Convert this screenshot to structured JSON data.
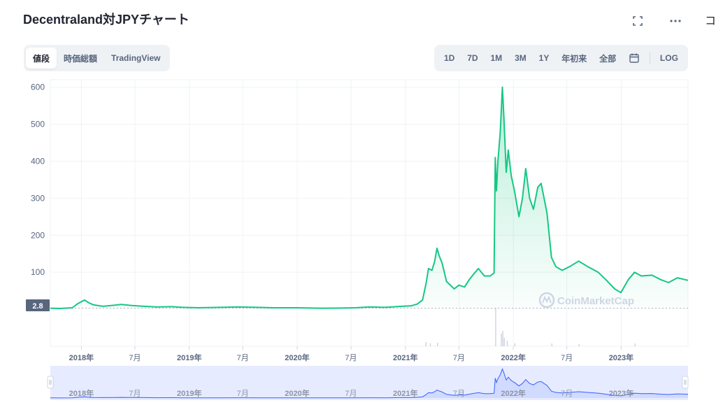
{
  "header": {
    "title": "Decentraland対JPYチャート",
    "expand_icon": "expand-icon",
    "more_icon": "more-icon"
  },
  "tabs": [
    {
      "label": "値段",
      "active": true
    },
    {
      "label": "時価総額",
      "active": false
    },
    {
      "label": "TradingView",
      "active": false
    }
  ],
  "ranges": [
    "1D",
    "7D",
    "1M",
    "3M",
    "1Y",
    "年初来",
    "全部"
  ],
  "calendar_icon": "calendar-icon",
  "log_label": "LOG",
  "watermark": "CoinMarketCap",
  "current_price_label": "2.8",
  "colors": {
    "line": "#16c784",
    "nav_line": "#3861fb",
    "nav_bg": "#e6ebff",
    "grid": "#eff2f5",
    "axis_text": "#58667e"
  },
  "chart_data": {
    "type": "area",
    "title": "Decentraland対JPYチャート",
    "xlabel": "",
    "ylabel": "",
    "ylim": [
      -100,
      620
    ],
    "y_ticks": [
      600,
      500,
      400,
      300,
      200,
      100
    ],
    "x_range": [
      "2017-09-18",
      "2023-08-15"
    ],
    "x_tick_labels": [
      {
        "date": "2018-01-01",
        "label": "2018年"
      },
      {
        "date": "2018-07-01",
        "label": "7月"
      },
      {
        "date": "2019-01-01",
        "label": "2019年"
      },
      {
        "date": "2019-07-01",
        "label": "7月"
      },
      {
        "date": "2020-01-01",
        "label": "2020年"
      },
      {
        "date": "2020-07-01",
        "label": "7月"
      },
      {
        "date": "2021-01-01",
        "label": "2021年"
      },
      {
        "date": "2021-07-01",
        "label": "7月"
      },
      {
        "date": "2022-01-01",
        "label": "2022年"
      },
      {
        "date": "2022-07-01",
        "label": "7月"
      },
      {
        "date": "2023-01-01",
        "label": "2023年"
      }
    ],
    "grid": true,
    "legend": "none",
    "series": [
      {
        "points": [
          [
            "2017-09-18",
            2.8
          ],
          [
            "2017-10-20",
            2
          ],
          [
            "2017-12-01",
            4
          ],
          [
            "2017-12-20",
            15
          ],
          [
            "2017-12-31",
            20
          ],
          [
            "2018-01-12",
            25
          ],
          [
            "2018-01-25",
            18
          ],
          [
            "2018-02-10",
            12
          ],
          [
            "2018-03-15",
            8
          ],
          [
            "2018-04-25",
            11
          ],
          [
            "2018-05-15",
            13
          ],
          [
            "2018-06-20",
            10
          ],
          [
            "2018-08-01",
            8
          ],
          [
            "2018-09-15",
            6
          ],
          [
            "2018-11-01",
            7
          ],
          [
            "2018-12-10",
            5
          ],
          [
            "2019-02-01",
            4
          ],
          [
            "2019-04-15",
            5
          ],
          [
            "2019-06-15",
            6
          ],
          [
            "2019-08-15",
            5
          ],
          [
            "2019-10-15",
            4
          ],
          [
            "2020-01-01",
            4
          ],
          [
            "2020-03-15",
            2.8
          ],
          [
            "2020-05-15",
            3
          ],
          [
            "2020-07-15",
            4
          ],
          [
            "2020-09-01",
            6
          ],
          [
            "2020-10-25",
            5
          ],
          [
            "2020-12-20",
            8
          ],
          [
            "2021-01-20",
            9
          ],
          [
            "2021-02-10",
            14
          ],
          [
            "2021-02-28",
            25
          ],
          [
            "2021-03-12",
            70
          ],
          [
            "2021-03-20",
            110
          ],
          [
            "2021-04-01",
            105
          ],
          [
            "2021-04-10",
            130
          ],
          [
            "2021-04-18",
            165
          ],
          [
            "2021-04-25",
            145
          ],
          [
            "2021-05-05",
            125
          ],
          [
            "2021-05-20",
            75
          ],
          [
            "2021-06-15",
            55
          ],
          [
            "2021-07-01",
            65
          ],
          [
            "2021-07-20",
            60
          ],
          [
            "2021-08-05",
            80
          ],
          [
            "2021-08-20",
            95
          ],
          [
            "2021-09-05",
            110
          ],
          [
            "2021-09-25",
            90
          ],
          [
            "2021-10-15",
            90
          ],
          [
            "2021-10-28",
            98
          ],
          [
            "2021-11-01",
            410
          ],
          [
            "2021-11-05",
            320
          ],
          [
            "2021-11-10",
            400
          ],
          [
            "2021-11-18",
            480
          ],
          [
            "2021-11-25",
            600
          ],
          [
            "2021-11-30",
            520
          ],
          [
            "2021-12-08",
            370
          ],
          [
            "2021-12-15",
            430
          ],
          [
            "2021-12-25",
            360
          ],
          [
            "2022-01-05",
            320
          ],
          [
            "2022-01-20",
            250
          ],
          [
            "2022-02-01",
            300
          ],
          [
            "2022-02-12",
            380
          ],
          [
            "2022-02-25",
            300
          ],
          [
            "2022-03-10",
            270
          ],
          [
            "2022-03-25",
            330
          ],
          [
            "2022-04-05",
            340
          ],
          [
            "2022-04-25",
            260
          ],
          [
            "2022-05-10",
            140
          ],
          [
            "2022-05-25",
            115
          ],
          [
            "2022-06-15",
            105
          ],
          [
            "2022-07-10",
            115
          ],
          [
            "2022-08-10",
            130
          ],
          [
            "2022-09-10",
            115
          ],
          [
            "2022-10-15",
            100
          ],
          [
            "2022-11-10",
            80
          ],
          [
            "2022-12-10",
            55
          ],
          [
            "2022-12-31",
            45
          ],
          [
            "2023-01-25",
            80
          ],
          [
            "2023-02-15",
            100
          ],
          [
            "2023-03-10",
            90
          ],
          [
            "2023-04-15",
            92
          ],
          [
            "2023-05-15",
            80
          ],
          [
            "2023-06-10",
            72
          ],
          [
            "2023-07-10",
            85
          ],
          [
            "2023-08-15",
            78
          ]
        ]
      }
    ]
  }
}
